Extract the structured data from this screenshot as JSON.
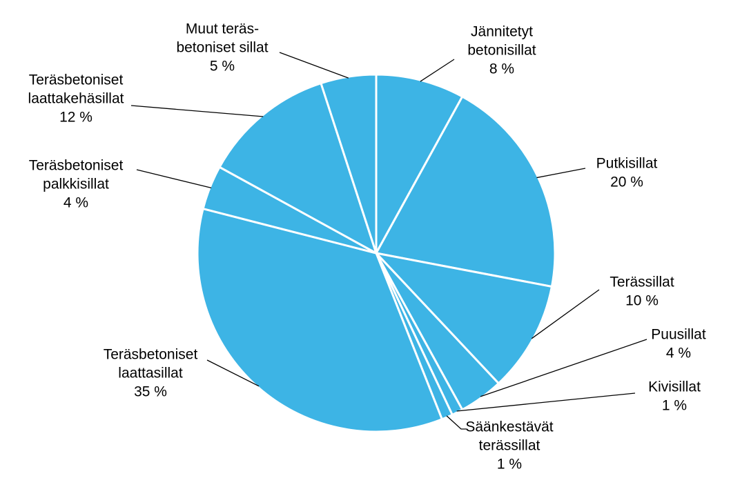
{
  "chart_data": {
    "type": "pie",
    "color": "#3db4e5",
    "categories": [
      [
        "Jännitetyt",
        "betonisillat"
      ],
      [
        "Putkisillat"
      ],
      [
        "Terässillat"
      ],
      [
        "Puusillat"
      ],
      [
        "Kivisillat"
      ],
      [
        "Säänkestävät",
        "terässillat"
      ],
      [
        "Teräsbetoniset",
        "laattasillat"
      ],
      [
        "Teräsbetoniset",
        "palkkisillat"
      ],
      [
        "Teräsbetoniset",
        "laattakehäsillat"
      ],
      [
        "Muut teräs-",
        "betoniset sillat"
      ]
    ],
    "values": [
      8,
      20,
      10,
      4,
      1,
      1,
      35,
      4,
      12,
      5
    ],
    "value_labels": [
      "8 %",
      "20 %",
      "10 %",
      "4 %",
      "1 %",
      "1 %",
      "35 %",
      "4 %",
      "12 %",
      "5 %"
    ]
  }
}
